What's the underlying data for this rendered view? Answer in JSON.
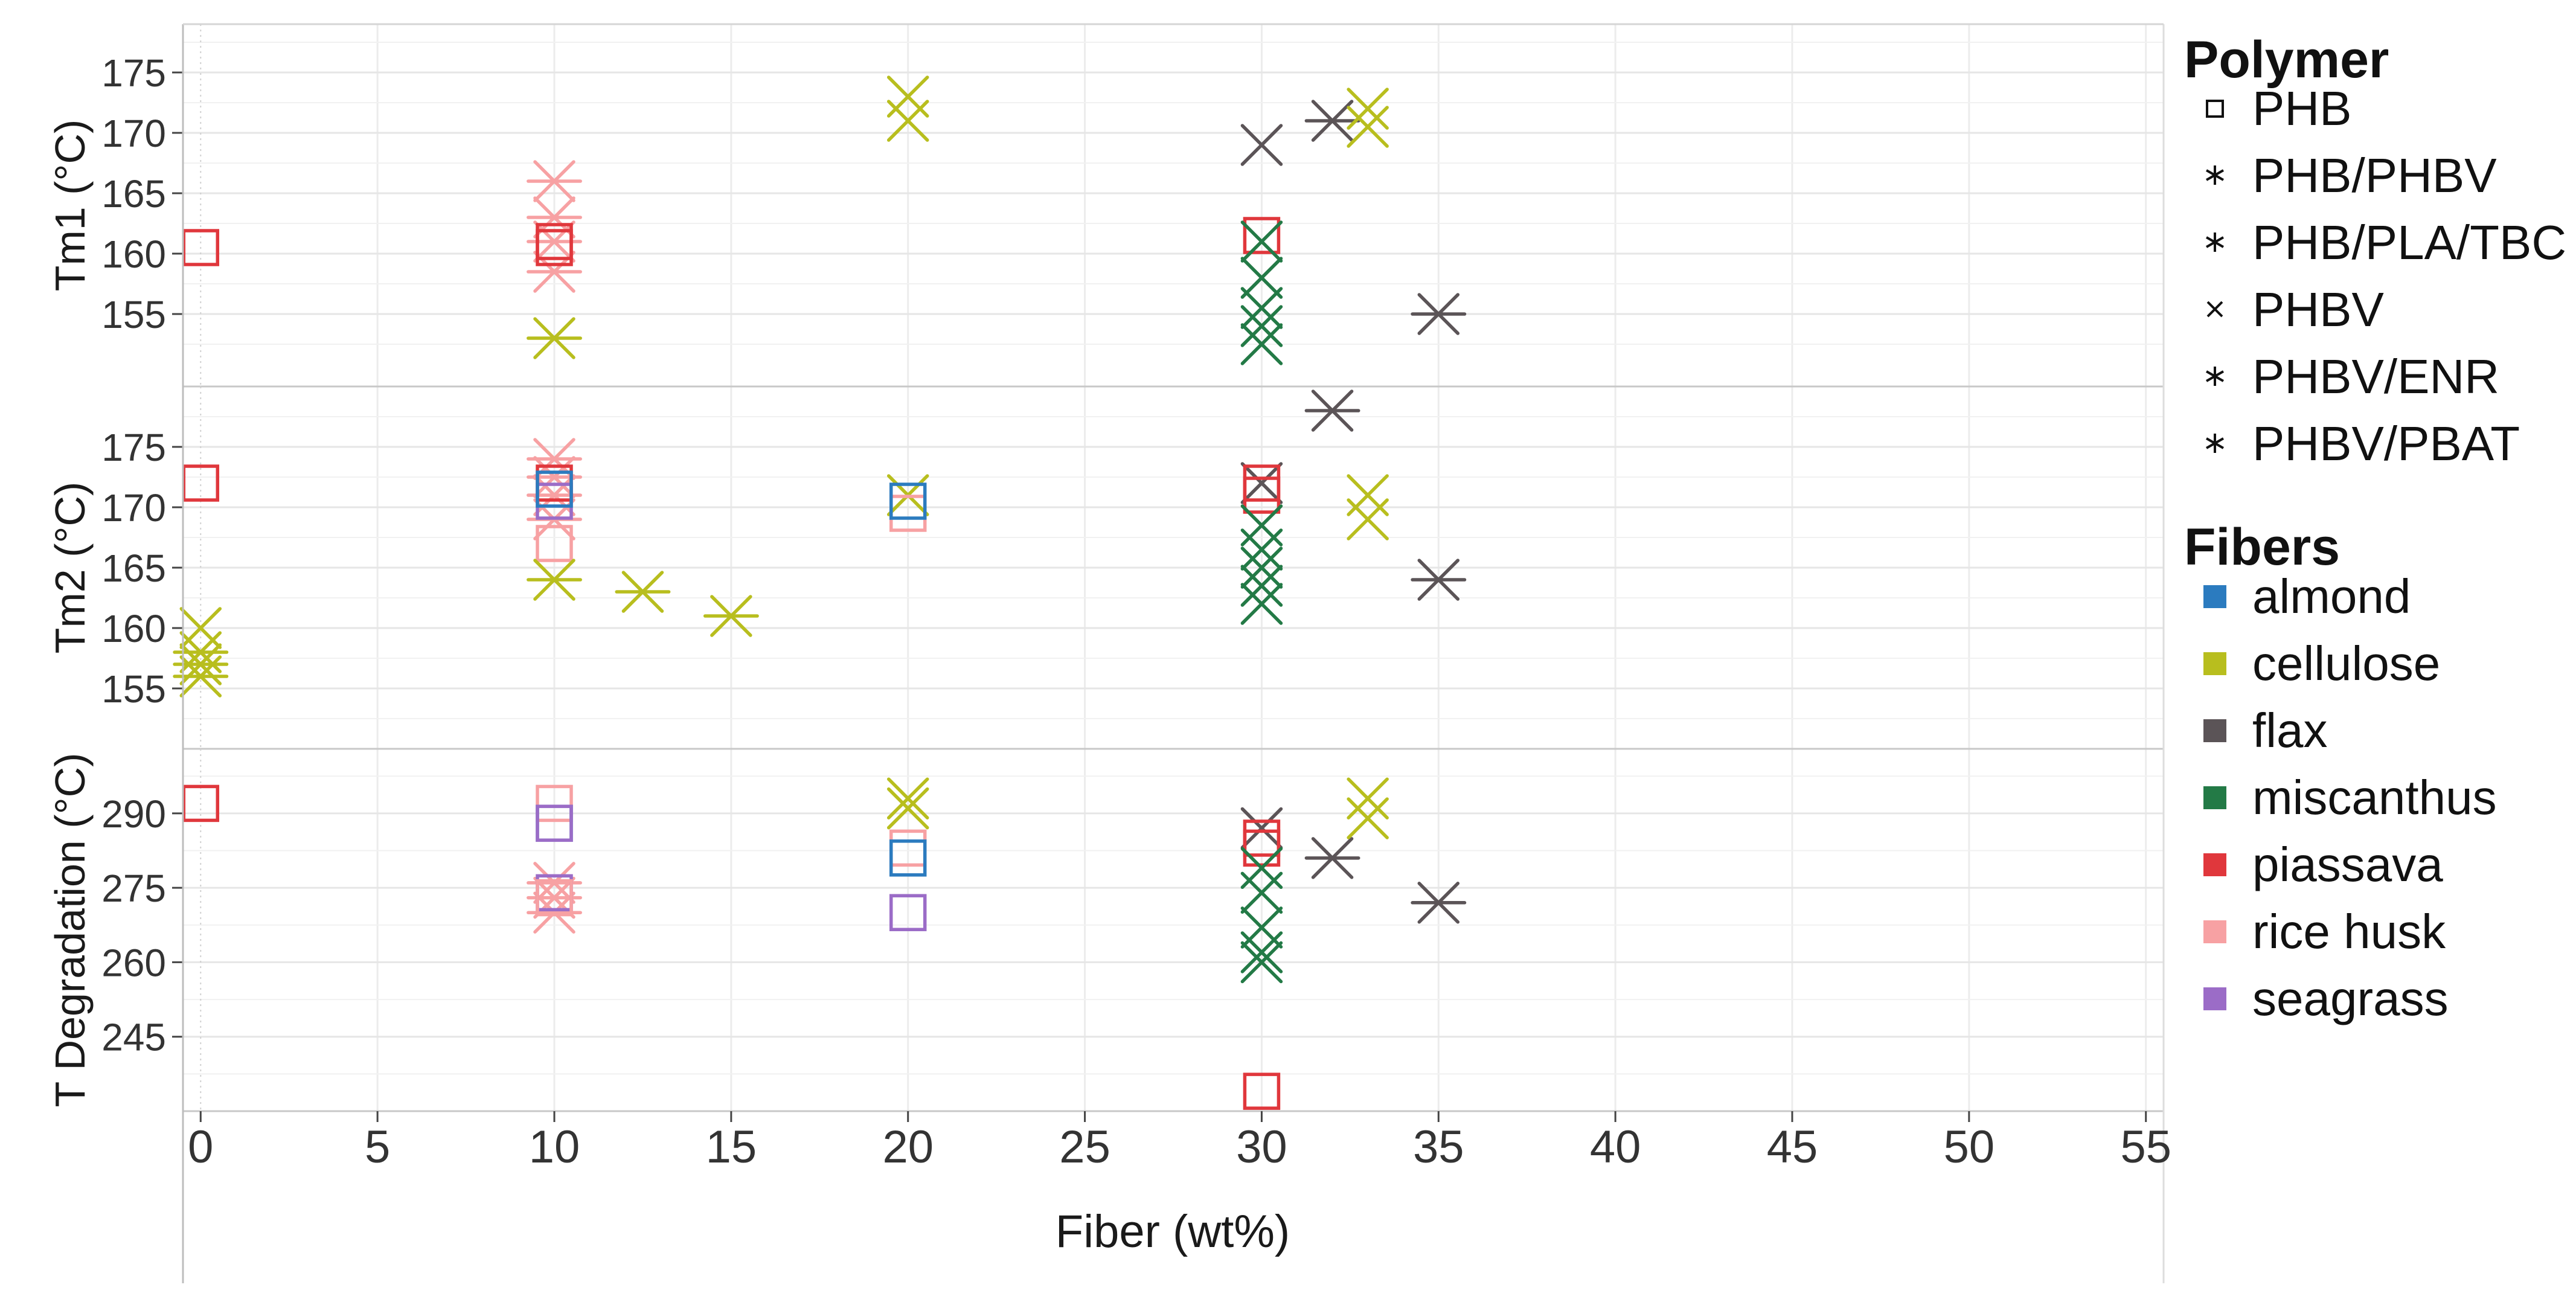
{
  "chart_data": {
    "type": "scatter",
    "xlabel": "Fiber (wt%)",
    "xlim": [
      -0.5,
      55.5
    ],
    "x_ticks": [
      "0",
      "5",
      "10",
      "15",
      "20",
      "25",
      "30",
      "35",
      "40",
      "45",
      "50",
      "55"
    ],
    "grid": true,
    "legend_placement": "right",
    "colors": {
      "almond": "#2b7bbf",
      "cellulose": "#b8be1e",
      "flax": "#5b5457",
      "miscanthus": "#237a46",
      "piassava": "#e0373c",
      "rice husk": "#f7a1a3",
      "seagrass": "#9b6cc7"
    },
    "legend": {
      "polymer_title": "Polymer",
      "polymers": [
        {
          "name": "PHB",
          "symbol": "square"
        },
        {
          "name": "PHB/PHBV",
          "symbol": "star"
        },
        {
          "name": "PHB/PLA/TBC",
          "symbol": "star"
        },
        {
          "name": "PHBV",
          "symbol": "cross"
        },
        {
          "name": "PHBV/ENR",
          "symbol": "star"
        },
        {
          "name": "PHBV/PBAT",
          "symbol": "star"
        }
      ],
      "fibers_title": "Fibers",
      "fibers": [
        "almond",
        "cellulose",
        "flax",
        "miscanthus",
        "piassava",
        "rice husk",
        "seagrass"
      ]
    },
    "panels": [
      {
        "ylabel": "Tm1 (°C)",
        "ylim": [
          149,
          179
        ],
        "y_ticks": [
          155,
          160,
          165,
          170,
          175
        ],
        "points": [
          {
            "x": 0,
            "y": 160.5,
            "s": "square",
            "c": "piassava"
          },
          {
            "x": 10,
            "y": 166,
            "s": "star",
            "c": "rice husk"
          },
          {
            "x": 10,
            "y": 163,
            "s": "star",
            "c": "rice husk"
          },
          {
            "x": 10,
            "y": 161,
            "s": "star",
            "c": "rice husk"
          },
          {
            "x": 10,
            "y": 158.5,
            "s": "star",
            "c": "rice husk"
          },
          {
            "x": 10,
            "y": 161,
            "s": "square",
            "c": "piassava"
          },
          {
            "x": 10,
            "y": 160.5,
            "s": "square",
            "c": "piassava"
          },
          {
            "x": 10,
            "y": 153,
            "s": "star",
            "c": "cellulose"
          },
          {
            "x": 20,
            "y": 173,
            "s": "cross",
            "c": "cellulose"
          },
          {
            "x": 20,
            "y": 171,
            "s": "cross",
            "c": "cellulose"
          },
          {
            "x": 30,
            "y": 169,
            "s": "cross",
            "c": "flax"
          },
          {
            "x": 30,
            "y": 161.5,
            "s": "square",
            "c": "piassava"
          },
          {
            "x": 30,
            "y": 161,
            "s": "cross",
            "c": "miscanthus"
          },
          {
            "x": 30,
            "y": 158,
            "s": "cross",
            "c": "miscanthus"
          },
          {
            "x": 30,
            "y": 155.5,
            "s": "cross",
            "c": "miscanthus"
          },
          {
            "x": 30,
            "y": 154,
            "s": "cross",
            "c": "miscanthus"
          },
          {
            "x": 30,
            "y": 152.5,
            "s": "cross",
            "c": "miscanthus"
          },
          {
            "x": 32,
            "y": 171,
            "s": "star",
            "c": "flax"
          },
          {
            "x": 33,
            "y": 172,
            "s": "cross",
            "c": "cellulose"
          },
          {
            "x": 33,
            "y": 170.5,
            "s": "cross",
            "c": "cellulose"
          },
          {
            "x": 35,
            "y": 155,
            "s": "star",
            "c": "flax"
          }
        ]
      },
      {
        "ylabel": "Tm2 (°C)",
        "ylim": [
          150,
          180
        ],
        "y_ticks": [
          155,
          160,
          165,
          170,
          175
        ],
        "points": [
          {
            "x": 0,
            "y": 172,
            "s": "square",
            "c": "piassava"
          },
          {
            "x": 0,
            "y": 160,
            "s": "cross",
            "c": "cellulose"
          },
          {
            "x": 0,
            "y": 158,
            "s": "star",
            "c": "cellulose"
          },
          {
            "x": 0,
            "y": 157,
            "s": "star",
            "c": "cellulose"
          },
          {
            "x": 0,
            "y": 156,
            "s": "star",
            "c": "cellulose"
          },
          {
            "x": 10,
            "y": 174,
            "s": "star",
            "c": "rice husk"
          },
          {
            "x": 10,
            "y": 172.5,
            "s": "star",
            "c": "rice husk"
          },
          {
            "x": 10,
            "y": 171,
            "s": "star",
            "c": "rice husk"
          },
          {
            "x": 10,
            "y": 169,
            "s": "star",
            "c": "rice husk"
          },
          {
            "x": 10,
            "y": 167,
            "s": "square",
            "c": "rice husk"
          },
          {
            "x": 10,
            "y": 170.5,
            "s": "square",
            "c": "seagrass"
          },
          {
            "x": 10,
            "y": 172,
            "s": "square",
            "c": "piassava"
          },
          {
            "x": 10,
            "y": 171.5,
            "s": "square",
            "c": "almond"
          },
          {
            "x": 10,
            "y": 164,
            "s": "star",
            "c": "cellulose"
          },
          {
            "x": 12.5,
            "y": 163,
            "s": "star",
            "c": "cellulose"
          },
          {
            "x": 15,
            "y": 161,
            "s": "star",
            "c": "cellulose"
          },
          {
            "x": 20,
            "y": 171,
            "s": "cross",
            "c": "cellulose"
          },
          {
            "x": 20,
            "y": 169.5,
            "s": "square",
            "c": "rice husk"
          },
          {
            "x": 20,
            "y": 170.5,
            "s": "square",
            "c": "almond"
          },
          {
            "x": 30,
            "y": 172,
            "s": "cross",
            "c": "flax"
          },
          {
            "x": 30,
            "y": 172,
            "s": "square",
            "c": "piassava"
          },
          {
            "x": 30,
            "y": 171,
            "s": "square",
            "c": "piassava"
          },
          {
            "x": 30,
            "y": 168.5,
            "s": "cross",
            "c": "miscanthus"
          },
          {
            "x": 30,
            "y": 166.5,
            "s": "cross",
            "c": "miscanthus"
          },
          {
            "x": 30,
            "y": 165,
            "s": "cross",
            "c": "miscanthus"
          },
          {
            "x": 30,
            "y": 163.5,
            "s": "cross",
            "c": "miscanthus"
          },
          {
            "x": 30,
            "y": 162,
            "s": "cross",
            "c": "miscanthus"
          },
          {
            "x": 32,
            "y": 178,
            "s": "star",
            "c": "flax"
          },
          {
            "x": 33,
            "y": 171,
            "s": "cross",
            "c": "cellulose"
          },
          {
            "x": 33,
            "y": 169,
            "s": "cross",
            "c": "cellulose"
          },
          {
            "x": 35,
            "y": 164,
            "s": "star",
            "c": "flax"
          }
        ]
      },
      {
        "ylabel": "T Degradation (°C)",
        "ylim": [
          230,
          303
        ],
        "y_ticks": [
          245,
          260,
          275,
          290
        ],
        "points": [
          {
            "x": 0,
            "y": 292,
            "s": "square",
            "c": "piassava"
          },
          {
            "x": 10,
            "y": 292,
            "s": "square",
            "c": "rice husk"
          },
          {
            "x": 10,
            "y": 288,
            "s": "square",
            "c": "almond"
          },
          {
            "x": 10,
            "y": 288,
            "s": "square",
            "c": "seagrass"
          },
          {
            "x": 10,
            "y": 276,
            "s": "star",
            "c": "rice husk"
          },
          {
            "x": 10,
            "y": 273,
            "s": "star",
            "c": "rice husk"
          },
          {
            "x": 10,
            "y": 270,
            "s": "star",
            "c": "rice husk"
          },
          {
            "x": 10,
            "y": 274,
            "s": "square",
            "c": "seagrass"
          },
          {
            "x": 10,
            "y": 273,
            "s": "square",
            "c": "rice husk"
          },
          {
            "x": 20,
            "y": 293,
            "s": "cross",
            "c": "cellulose"
          },
          {
            "x": 20,
            "y": 291,
            "s": "cross",
            "c": "cellulose"
          },
          {
            "x": 20,
            "y": 283,
            "s": "square",
            "c": "rice husk"
          },
          {
            "x": 20,
            "y": 281,
            "s": "square",
            "c": "almond"
          },
          {
            "x": 20,
            "y": 270,
            "s": "square",
            "c": "seagrass"
          },
          {
            "x": 30,
            "y": 287,
            "s": "cross",
            "c": "flax"
          },
          {
            "x": 30,
            "y": 285,
            "s": "square",
            "c": "piassava"
          },
          {
            "x": 30,
            "y": 283,
            "s": "square",
            "c": "piassava"
          },
          {
            "x": 30,
            "y": 279,
            "s": "cross",
            "c": "miscanthus"
          },
          {
            "x": 30,
            "y": 274,
            "s": "cross",
            "c": "miscanthus"
          },
          {
            "x": 30,
            "y": 267,
            "s": "cross",
            "c": "miscanthus"
          },
          {
            "x": 30,
            "y": 262,
            "s": "cross",
            "c": "miscanthus"
          },
          {
            "x": 30,
            "y": 260,
            "s": "cross",
            "c": "miscanthus"
          },
          {
            "x": 30,
            "y": 234,
            "s": "square",
            "c": "piassava"
          },
          {
            "x": 32,
            "y": 281,
            "s": "star",
            "c": "flax"
          },
          {
            "x": 33,
            "y": 293,
            "s": "cross",
            "c": "cellulose"
          },
          {
            "x": 33,
            "y": 289,
            "s": "cross",
            "c": "cellulose"
          },
          {
            "x": 35,
            "y": 272,
            "s": "star",
            "c": "flax"
          }
        ]
      }
    ]
  }
}
